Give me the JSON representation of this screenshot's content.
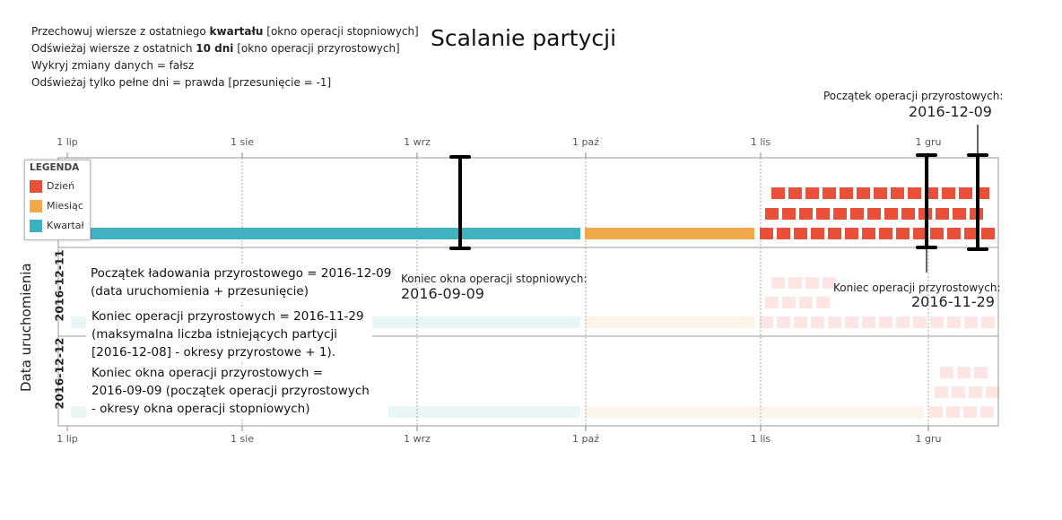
{
  "title": "Scalanie partycji",
  "config": {
    "line1_pre": "Przechowuj wiersze z ostatniego ",
    "line1_bold": "kwartału",
    "line1_post": " [okno operacji stopniowych]",
    "line2_pre": "Odświeżaj wiersze z ostatnich ",
    "line2_bold": "10 dni",
    "line2_post": "  [okno operacji przyrostowych]",
    "line3": "Wykryj zmiany danych = fałsz",
    "line4": "Odświeżaj tylko pełne dni = prawda [przesunięcie = -1]"
  },
  "axis": {
    "months": [
      "1 lip",
      "1 sie",
      "1 wrz",
      "1 paź",
      "1 lis",
      "1 gru"
    ],
    "y_label": "Data uruchomienia"
  },
  "rows": [
    "2016-12-11",
    "2016-12-12"
  ],
  "legend": {
    "title": "LEGENDA",
    "items": [
      {
        "label": "Dzień",
        "color": "#e8503a"
      },
      {
        "label": "Miesiąc",
        "color": "#f0a948"
      },
      {
        "label": "Kwartał",
        "color": "#3fb2c0"
      }
    ]
  },
  "annotations": {
    "incr_start_label": "Początek operacji przyrostowych:",
    "incr_start_date": "2016-12-09",
    "rolling_end_label": "Koniec okna operacji stopniowych:",
    "rolling_end_date": "2016-09-09",
    "incr_end_label": "Koniec operacji przyrostowych:",
    "incr_end_date": "2016-11-29"
  },
  "notes": {
    "note1": [
      "Początek ładowania przyrostowego = 2016-12-09",
      "(data uruchomienia + przesunięcie)"
    ],
    "note2": [
      "Koniec operacji przyrostowych = 2016-11-29",
      "(maksymalna liczba istniejących partycji",
      "[2016-12-08] - okresy przyrostowe + 1)."
    ],
    "note3": [
      "Koniec okna operacji przyrostowych =",
      "2016-09-09 (początek operacji przyrostowych",
      "- okresy okna operacji stopniowych)"
    ]
  }
}
